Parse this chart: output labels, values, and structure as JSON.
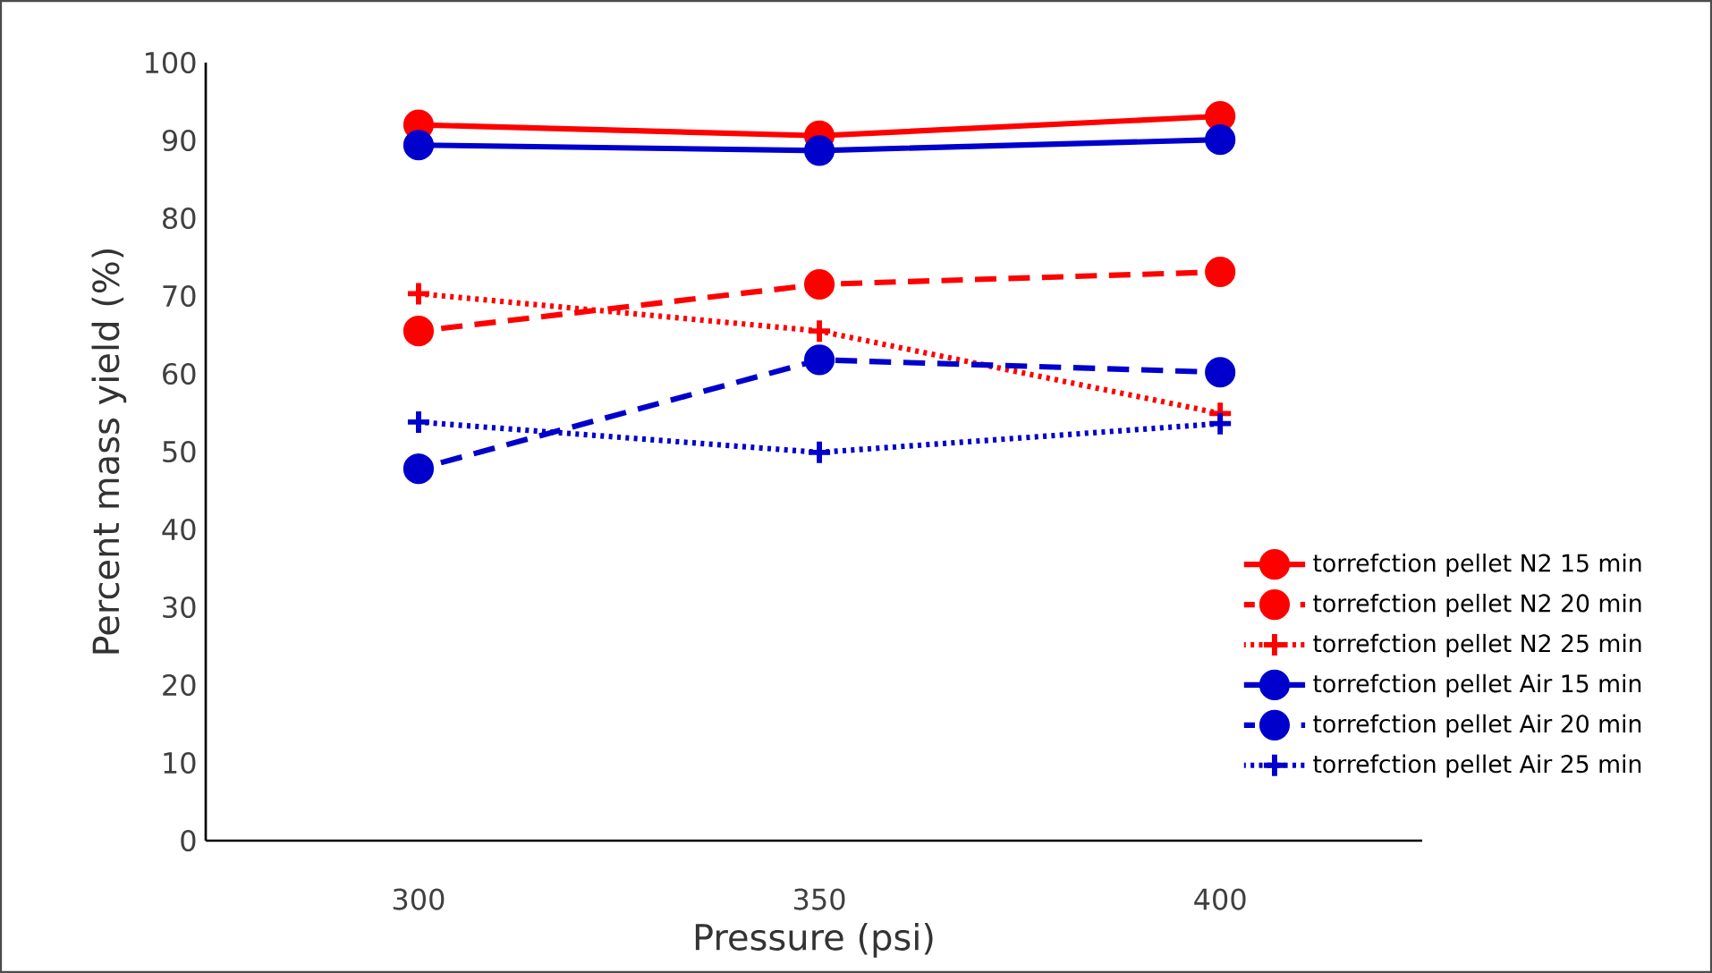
{
  "chart_data": {
    "type": "line",
    "xlabel": "Pressure (psi)",
    "ylabel": "Percent mass yield (%)",
    "categories": [
      "300",
      "350",
      "400"
    ],
    "ylim": [
      0,
      100
    ],
    "yticks": [
      0,
      10,
      20,
      30,
      40,
      50,
      60,
      70,
      80,
      90,
      100
    ],
    "grid": false,
    "legend": "right",
    "series": [
      {
        "name": "torrefction pellet N2 15 min",
        "color": "#ff0000",
        "marker": "circle",
        "line_style": "solid",
        "values": [
          92,
          90.6,
          93.1
        ]
      },
      {
        "name": "torrefction pellet N2 20 min",
        "color": "#ff0000",
        "marker": "circle",
        "line_style": "dashed",
        "values": [
          65.5,
          71.5,
          73.1
        ]
      },
      {
        "name": "torrefction pellet N2 25 min",
        "color": "#ff0000",
        "marker": "cross",
        "line_style": "dotted",
        "values": [
          70.3,
          65.5,
          54.9
        ]
      },
      {
        "name": "torrefction pellet Air 15 min",
        "color": "#0000cc",
        "marker": "circle",
        "line_style": "solid",
        "values": [
          89.4,
          88.7,
          90.1
        ]
      },
      {
        "name": "torrefction pellet Air 20 min",
        "color": "#0000cc",
        "marker": "circle",
        "line_style": "dashed",
        "values": [
          47.8,
          61.8,
          60.2
        ]
      },
      {
        "name": "torrefction pellet Air 25 min",
        "color": "#0000cc",
        "marker": "cross",
        "line_style": "dotted",
        "values": [
          53.8,
          49.9,
          53.6
        ]
      }
    ]
  }
}
